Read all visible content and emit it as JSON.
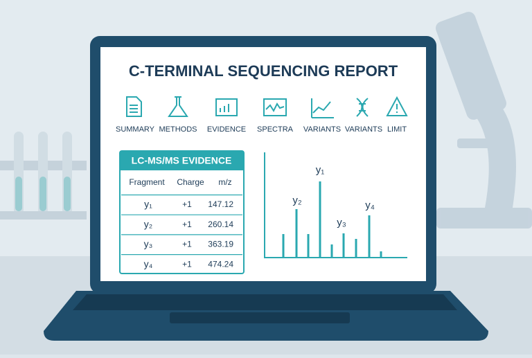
{
  "header": {
    "title": "C-TERMINAL SEQUENCING REPORT"
  },
  "nav": [
    "SUMMARY",
    "METHODS",
    "EVIDENCE",
    "SPECTRA",
    "VARIANTS",
    "VARIANTS",
    "LIMIT"
  ],
  "table": {
    "title": "LC-MS/MS EVIDENCE",
    "columns": [
      "Fragment",
      "Charge",
      "m/z"
    ],
    "rows": [
      [
        "y₁",
        "+1",
        147.12
      ],
      [
        "y₂",
        "+1",
        260.14
      ],
      [
        "y₃",
        "+1",
        363.19
      ],
      [
        "y₄",
        "+1",
        474.24
      ]
    ]
  },
  "spectrum": {
    "peak_labels": [
      "y₁",
      "y₂",
      "y₃",
      "y₄"
    ]
  }
}
